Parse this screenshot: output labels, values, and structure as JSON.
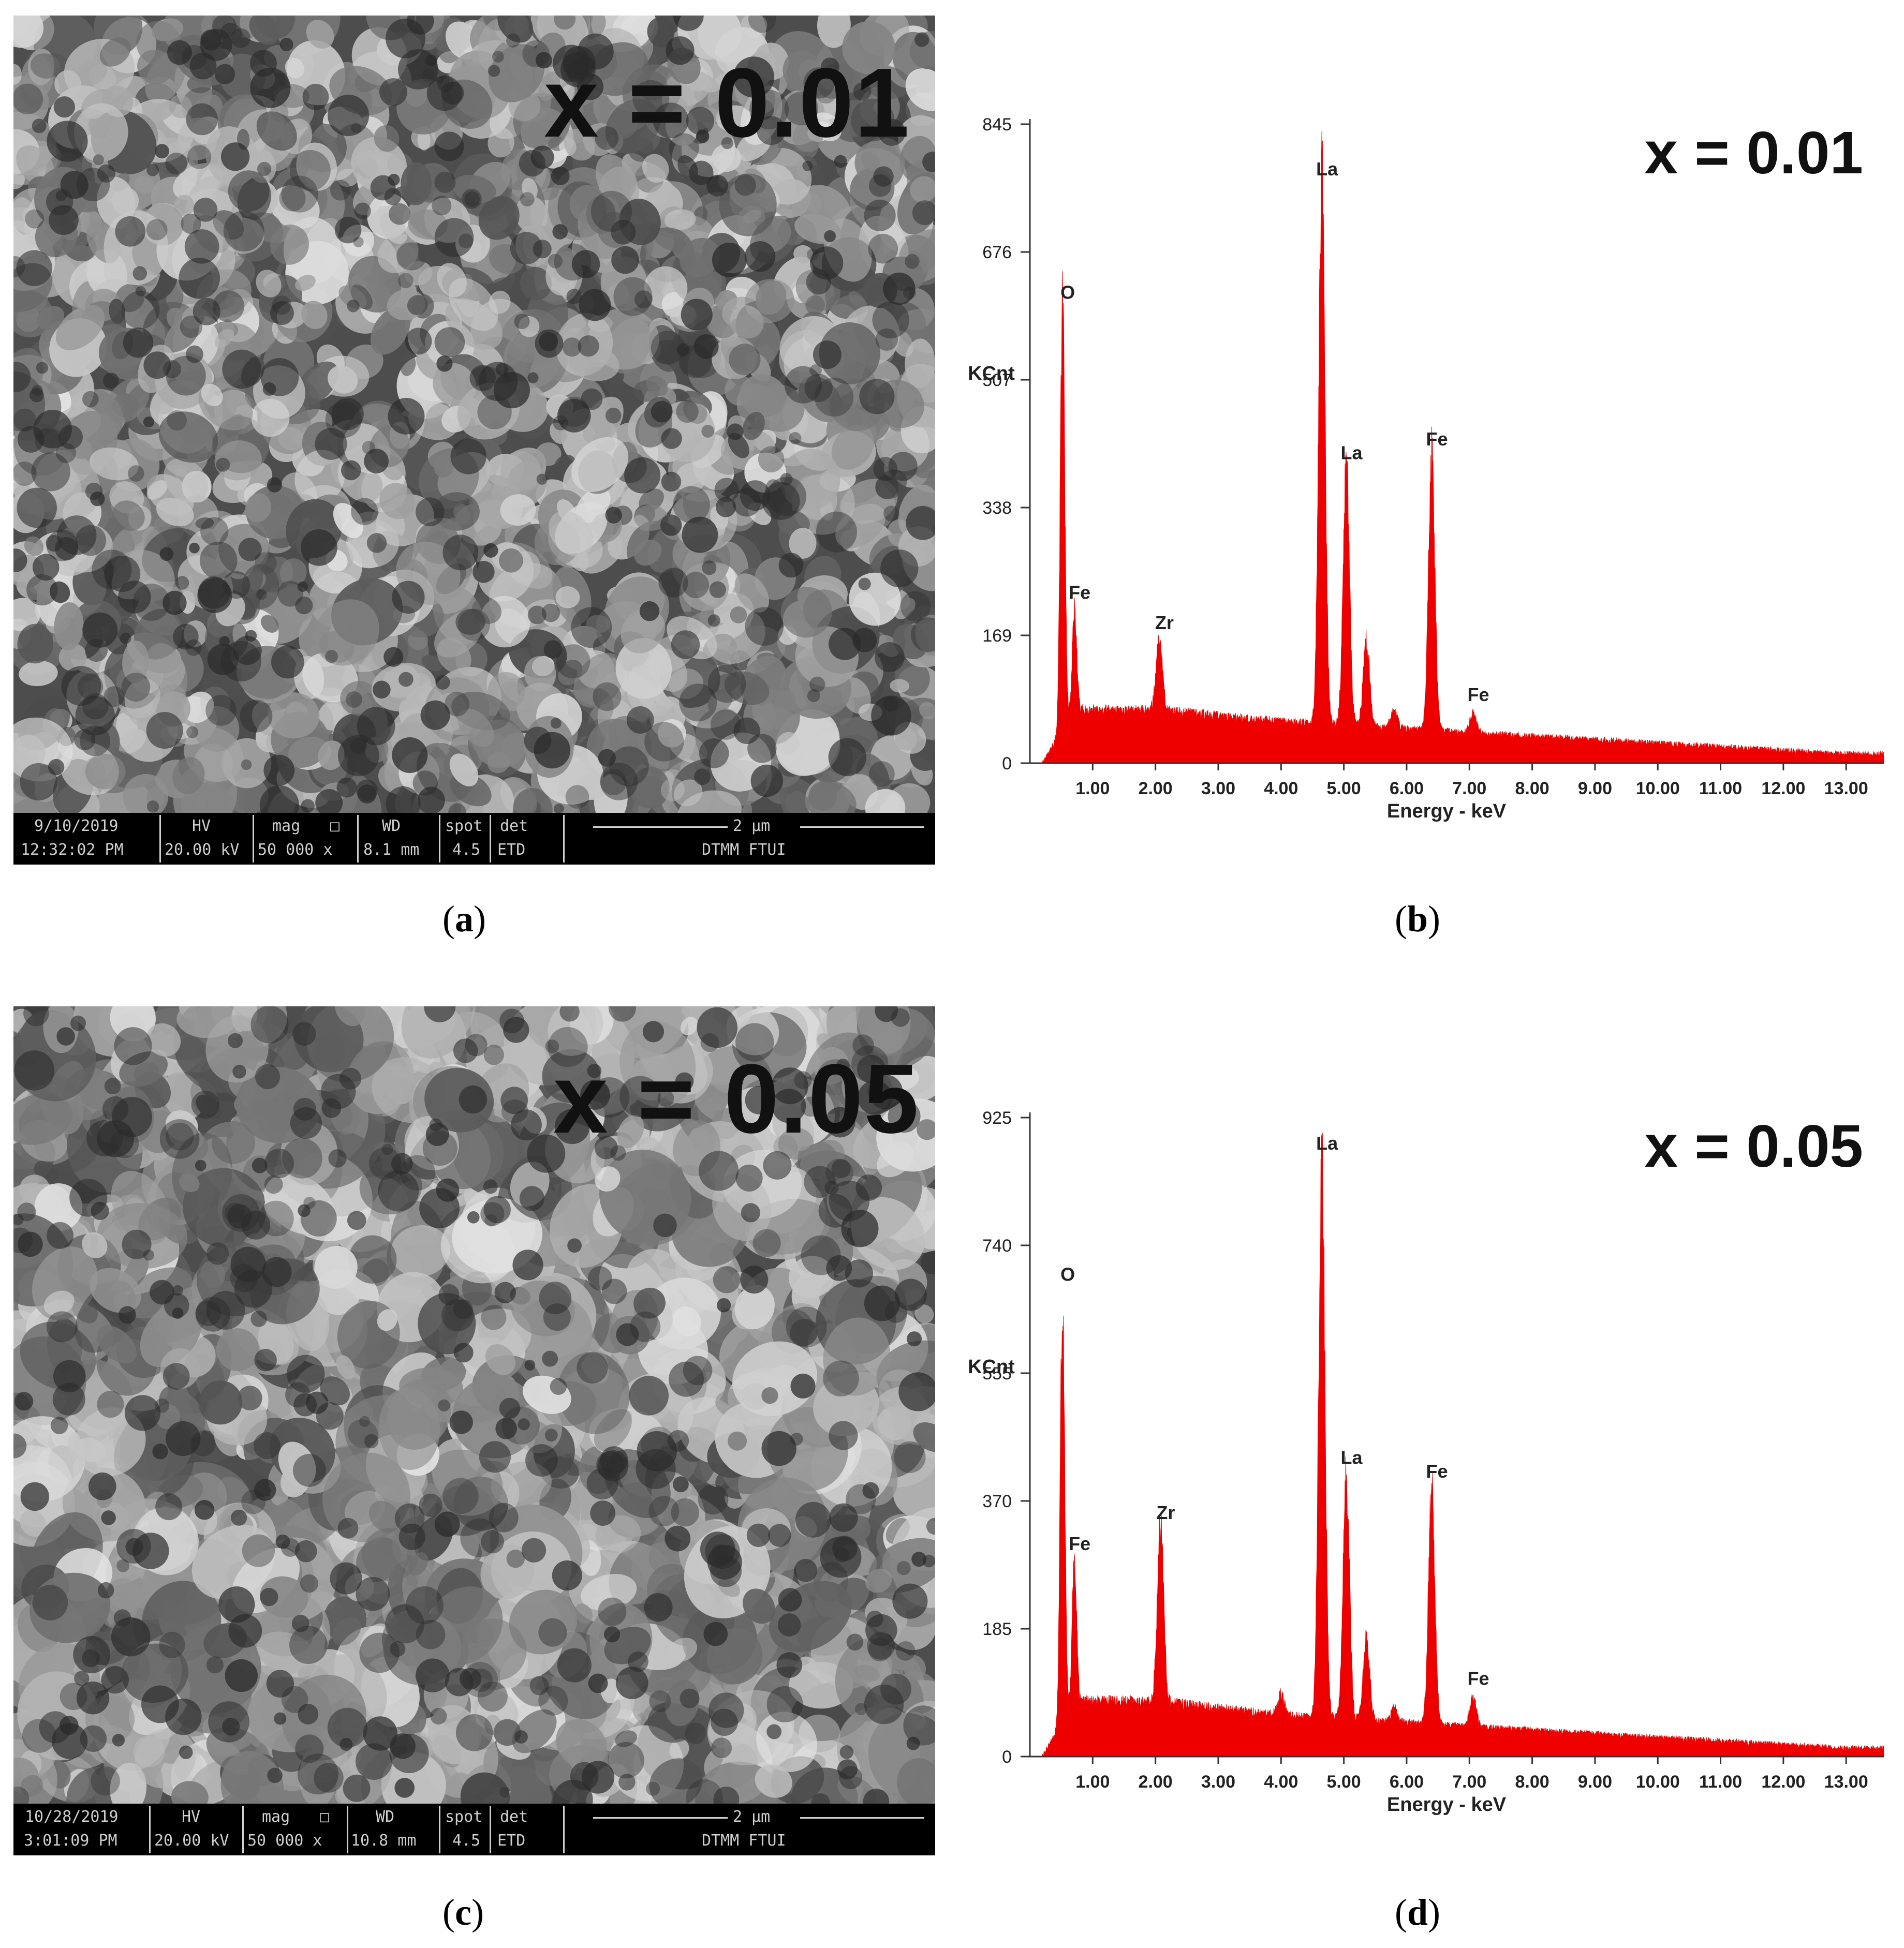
{
  "panels": [
    {
      "id": "a",
      "caption_letter": "a",
      "kind": "sem",
      "label": "x = 0.01",
      "info": {
        "date": "9/10/2019",
        "time": "12:32:02 PM",
        "hv_header": "HV",
        "hv": "20.00 kV",
        "mag_header": "mag",
        "mag": "50 000 x",
        "wd_header": "WD",
        "wd": "8.1 mm",
        "spot_header": "spot",
        "spot": "4.5",
        "det_header": "det",
        "det": "ETD",
        "scale": "2 μm",
        "lab": "DTMM FTUI"
      }
    },
    {
      "id": "c",
      "caption_letter": "c",
      "kind": "sem",
      "label": "x = 0.05",
      "info": {
        "date": "10/28/2019",
        "time": "3:01:09 PM",
        "hv_header": "HV",
        "hv": "20.00 kV",
        "mag_header": "mag",
        "mag": "50 000 x",
        "wd_header": "WD",
        "wd": "10.8 mm",
        "spot_header": "spot",
        "spot": "4.5",
        "det_header": "det",
        "det": "ETD",
        "scale": "2 μm",
        "lab": "DTMM FTUI"
      }
    },
    {
      "id": "b",
      "caption_letter": "b",
      "kind": "chart"
    },
    {
      "id": "d",
      "caption_letter": "d",
      "kind": "chart"
    }
  ],
  "chart_data": [
    {
      "type": "line",
      "panel": "b",
      "title": "x = 0.01",
      "xlabel": "Energy - keV",
      "ylabel": "KCnt",
      "color": "#ee0000",
      "xlim": [
        0,
        13.6
      ],
      "ylim": [
        0,
        845
      ],
      "xticks": [
        1,
        2,
        3,
        4,
        5,
        6,
        7,
        8,
        9,
        10,
        11,
        12,
        13
      ],
      "xtick_labels": [
        "1.00",
        "2.00",
        "3.00",
        "4.00",
        "5.00",
        "6.00",
        "7.00",
        "8.00",
        "9.00",
        "10.00",
        "11.00",
        "12.00",
        "13.00"
      ],
      "yticks": [
        0,
        169,
        338,
        507,
        676,
        845
      ],
      "ytick_labels": [
        "0",
        "169",
        "338",
        "507",
        "676",
        "845"
      ],
      "peaks": [
        {
          "label": "O",
          "x": 0.52,
          "y": 597
        },
        {
          "label": "Fe",
          "x": 0.71,
          "y": 200
        },
        {
          "label": "Zr",
          "x": 2.06,
          "y": 160
        },
        {
          "label": "La",
          "x": 4.65,
          "y": 760
        },
        {
          "label": "La",
          "x": 5.04,
          "y": 385
        },
        {
          "label": "Fe",
          "x": 6.4,
          "y": 403
        },
        {
          "label": "Fe",
          "x": 7.06,
          "y": 65
        }
      ],
      "minor_peaks": [
        {
          "x": 5.36,
          "y": 160
        },
        {
          "x": 5.8,
          "y": 70
        }
      ],
      "background": {
        "start": 0.2,
        "rise": 0.5,
        "level_at_2": 70,
        "level_at_4": 55,
        "level_at_13": 12
      }
    },
    {
      "type": "line",
      "panel": "d",
      "title": "x = 0.05",
      "xlabel": "Energy - keV",
      "ylabel": "KCnt",
      "color": "#ee0000",
      "xlim": [
        0,
        13.6
      ],
      "ylim": [
        0,
        925
      ],
      "xticks": [
        1,
        2,
        3,
        4,
        5,
        6,
        7,
        8,
        9,
        10,
        11,
        12,
        13
      ],
      "xtick_labels": [
        "1.00",
        "2.00",
        "3.00",
        "4.00",
        "5.00",
        "6.00",
        "7.00",
        "8.00",
        "9.00",
        "10.00",
        "11.00",
        "12.00",
        "13.00"
      ],
      "yticks": [
        0,
        185,
        370,
        555,
        740,
        925
      ],
      "ytick_labels": [
        "0",
        "185",
        "370",
        "555",
        "740",
        "925"
      ],
      "peaks": [
        {
          "label": "O",
          "x": 0.52,
          "y": 670
        },
        {
          "label": "Fe",
          "x": 0.71,
          "y": 280
        },
        {
          "label": "Zr",
          "x": 2.08,
          "y": 325
        },
        {
          "label": "La",
          "x": 4.65,
          "y": 860
        },
        {
          "label": "La",
          "x": 5.04,
          "y": 405
        },
        {
          "label": "Fe",
          "x": 6.4,
          "y": 385
        },
        {
          "label": "Fe",
          "x": 7.06,
          "y": 85
        }
      ],
      "minor_peaks": [
        {
          "x": 5.36,
          "y": 170
        },
        {
          "x": 5.8,
          "y": 70
        },
        {
          "x": 4.0,
          "y": 90
        }
      ],
      "background": {
        "start": 0.2,
        "rise": 0.5,
        "level_at_2": 80,
        "level_at_4": 60,
        "level_at_13": 12
      }
    }
  ]
}
